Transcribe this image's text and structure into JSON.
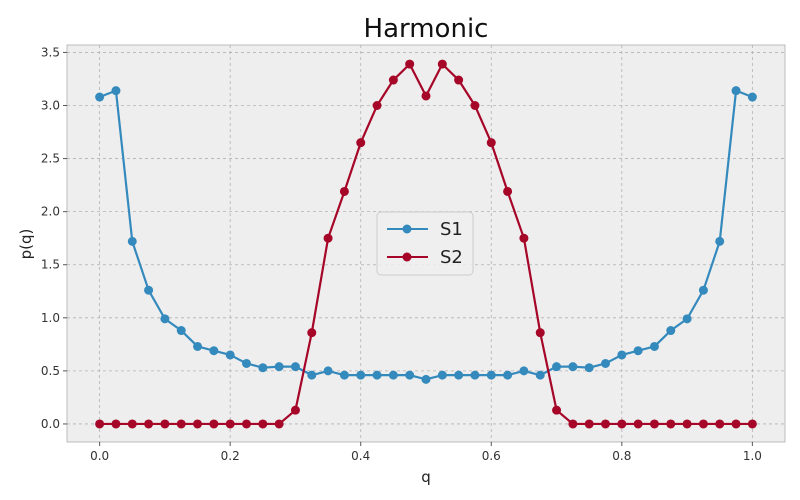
{
  "chart_data": {
    "type": "line",
    "title": "Harmonic",
    "xlabel": "q",
    "ylabel": "p(q)",
    "xlim": [
      -0.05,
      1.05
    ],
    "ylim": [
      -0.17,
      3.57
    ],
    "xticks": [
      0.0,
      0.2,
      0.4,
      0.6,
      0.8,
      1.0
    ],
    "xtick_labels": [
      "0.0",
      "0.2",
      "0.4",
      "0.6",
      "0.8",
      "1.0"
    ],
    "yticks": [
      0.0,
      0.5,
      1.0,
      1.5,
      2.0,
      2.5,
      3.0,
      3.5
    ],
    "ytick_labels": [
      "0.0",
      "0.5",
      "1.0",
      "1.5",
      "2.0",
      "2.5",
      "3.0",
      "3.5"
    ],
    "grid": true,
    "legend_position": "center",
    "x": [
      0.0,
      0.025,
      0.05,
      0.075,
      0.1,
      0.125,
      0.15,
      0.175,
      0.2,
      0.225,
      0.25,
      0.275,
      0.3,
      0.325,
      0.35,
      0.375,
      0.4,
      0.425,
      0.45,
      0.475,
      0.5,
      0.525,
      0.55,
      0.575,
      0.6,
      0.625,
      0.65,
      0.675,
      0.7,
      0.725,
      0.75,
      0.775,
      0.8,
      0.825,
      0.85,
      0.875,
      0.9,
      0.925,
      0.95,
      0.975,
      1.0
    ],
    "series": [
      {
        "name": "S1",
        "color": "#348abd",
        "values": [
          3.08,
          3.14,
          1.72,
          1.26,
          0.99,
          0.88,
          0.73,
          0.69,
          0.65,
          0.57,
          0.53,
          0.54,
          0.54,
          0.46,
          0.5,
          0.46,
          0.46,
          0.46,
          0.46,
          0.46,
          0.42,
          0.46,
          0.46,
          0.46,
          0.46,
          0.46,
          0.5,
          0.46,
          0.54,
          0.54,
          0.53,
          0.57,
          0.65,
          0.69,
          0.73,
          0.88,
          0.99,
          1.26,
          1.72,
          3.14,
          3.08
        ]
      },
      {
        "name": "S2",
        "color": "#a60628",
        "values": [
          0.0,
          0.0,
          0.0,
          0.0,
          0.0,
          0.0,
          0.0,
          0.0,
          0.0,
          0.0,
          0.0,
          0.0,
          0.13,
          0.86,
          1.75,
          2.19,
          2.65,
          3.0,
          3.24,
          3.39,
          3.09,
          3.39,
          3.24,
          3.0,
          2.65,
          2.19,
          1.75,
          0.86,
          0.13,
          0.0,
          0.0,
          0.0,
          0.0,
          0.0,
          0.0,
          0.0,
          0.0,
          0.0,
          0.0,
          0.0,
          0.0
        ]
      }
    ]
  }
}
